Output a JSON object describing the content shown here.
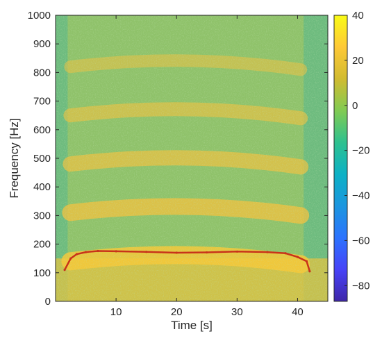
{
  "chart_data": {
    "type": "heatmap",
    "title": "",
    "xlabel": "Time [s]",
    "ylabel": "Frequency [Hz]",
    "xlim": [
      0,
      45
    ],
    "ylim": [
      0,
      1000
    ],
    "x_ticks": [
      10,
      20,
      30,
      40
    ],
    "y_ticks": [
      0,
      100,
      200,
      300,
      400,
      500,
      600,
      700,
      800,
      900,
      1000
    ],
    "colorbar": {
      "range": [
        -87,
        40
      ],
      "ticks": [
        40,
        20,
        0,
        -20,
        -40,
        -60,
        -80
      ],
      "tick_labels": [
        "40",
        "20",
        "0",
        "−20",
        "−40",
        "−60",
        "−80"
      ],
      "colormap": [
        "#3e26a8",
        "#4743f8",
        "#2c73fe",
        "#1b96df",
        "#0cb1c5",
        "#2ec18f",
        "#81cb53",
        "#d1bb30",
        "#fec937",
        "#f9fb15"
      ]
    },
    "harmonic_ridges_hz": [
      170,
      340,
      510,
      680,
      850
    ],
    "fundamental_track": {
      "color": "#c8331a",
      "t": [
        1.5,
        2.5,
        3.5,
        5,
        7,
        10,
        15,
        20,
        25,
        30,
        35,
        38,
        40,
        41.5,
        42
      ],
      "f": [
        110,
        150,
        165,
        172,
        176,
        175,
        173,
        170,
        171,
        174,
        172,
        168,
        155,
        140,
        105
      ]
    },
    "onset_time_s": 2.0,
    "offset_time_s": 41.0,
    "grid": false
  }
}
